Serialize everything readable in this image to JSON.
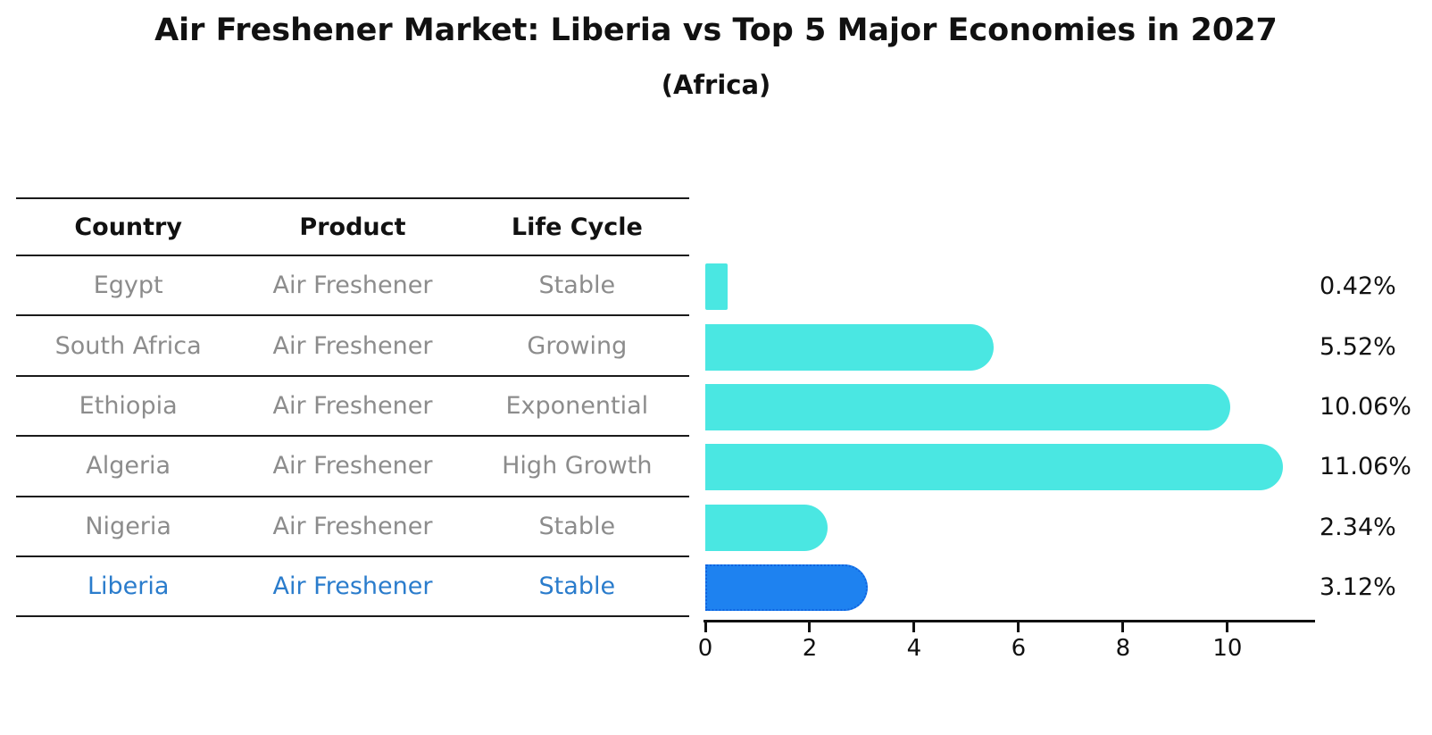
{
  "chart_data": {
    "type": "bar",
    "orientation": "horizontal",
    "title": "Air Freshener Market: Liberia vs Top 5 Major Economies in 2027",
    "subtitle": "(Africa)",
    "categories": [
      "Egypt",
      "South Africa",
      "Ethiopia",
      "Algeria",
      "Nigeria",
      "Liberia"
    ],
    "values": [
      0.42,
      5.52,
      10.06,
      11.06,
      2.34,
      3.12
    ],
    "value_labels": [
      "0.42%",
      "5.52%",
      "10.06%",
      "11.06%",
      "2.34%",
      "3.12%"
    ],
    "highlight_category": "Liberia",
    "highlight_index": 5,
    "xlim": [
      0,
      11.66
    ],
    "x_ticks": [
      0,
      2,
      4,
      6,
      8,
      10
    ],
    "grid": false,
    "legend": "none",
    "bar_color": "#4AE7E2",
    "highlight_bar_color": "#1E82F0",
    "highlight_bar_border_color": "#1064E0"
  },
  "table": {
    "headers": [
      "Country",
      "Product",
      "Life Cycle"
    ],
    "rows": [
      {
        "country": "Egypt",
        "product": "Air Freshener",
        "life_cycle": "Stable"
      },
      {
        "country": "South Africa",
        "product": "Air Freshener",
        "life_cycle": "Growing"
      },
      {
        "country": "Ethiopia",
        "product": "Air Freshener",
        "life_cycle": "Exponential"
      },
      {
        "country": "Algeria",
        "product": "Air Freshener",
        "life_cycle": "High Growth"
      },
      {
        "country": "Nigeria",
        "product": "Air Freshener",
        "life_cycle": "Stable"
      },
      {
        "country": "Liberia",
        "product": "Air Freshener",
        "life_cycle": "Stable"
      }
    ],
    "highlight_row_index": 5,
    "text_color": "#8C8C8C",
    "highlight_text_color": "#2A7CCC",
    "header_text_color": "#111111"
  }
}
